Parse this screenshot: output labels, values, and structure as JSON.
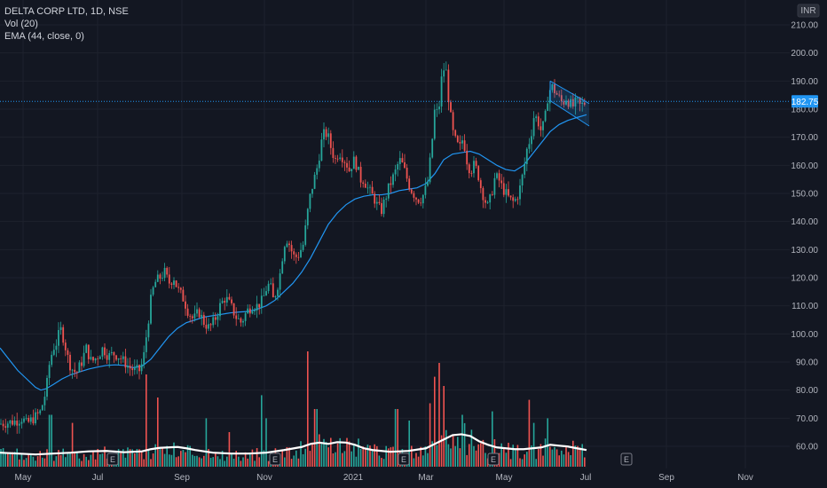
{
  "legend": {
    "symbol": "DELTA CORP LTD, 1D, NSE",
    "vol": "Vol (20)",
    "ema": "EMA (44, close, 0)"
  },
  "currency": "INR",
  "last_price_label": "182.75",
  "earnings_marker": "E",
  "colors": {
    "background": "#131722",
    "up": "#26a69a",
    "down": "#ef5350",
    "ema": "#2196f3",
    "vol_up": "#26a69a",
    "vol_down": "#ef5350",
    "vol_ma": "#ffffff",
    "axis_text": "#b2b5be",
    "price_tag": "#2196f3"
  },
  "chart_data": {
    "type": "candlestick",
    "x_ticks": [
      "May",
      "Jul",
      "Sep",
      "Nov",
      "2021",
      "Mar",
      "May",
      "Jul",
      "Sep",
      "Nov"
    ],
    "y_ticks": [
      "60.00",
      "70.00",
      "80.00",
      "90.00",
      "100.00",
      "110.00",
      "120.00",
      "130.00",
      "140.00",
      "150.00",
      "160.00",
      "170.00",
      "180.00",
      "190.00",
      "200.00",
      "210.00"
    ],
    "ylim": [
      55,
      213
    ],
    "price_path": [
      [
        0,
        68
      ],
      [
        10,
        68.5
      ],
      [
        18,
        69
      ],
      [
        25,
        70
      ],
      [
        30,
        68
      ],
      [
        38,
        70
      ],
      [
        45,
        72
      ],
      [
        48,
        75
      ],
      [
        52,
        80
      ],
      [
        56,
        90
      ],
      [
        60,
        95
      ],
      [
        64,
        97
      ],
      [
        68,
        102
      ],
      [
        72,
        98
      ],
      [
        76,
        92
      ],
      [
        80,
        88
      ],
      [
        86,
        86
      ],
      [
        92,
        90
      ],
      [
        97,
        95
      ],
      [
        103,
        90
      ],
      [
        110,
        92
      ],
      [
        116,
        95
      ],
      [
        122,
        92
      ],
      [
        128,
        93
      ],
      [
        134,
        92
      ],
      [
        140,
        90
      ],
      [
        146,
        88
      ],
      [
        152,
        87
      ],
      [
        158,
        87
      ],
      [
        162,
        92
      ],
      [
        166,
        102
      ],
      [
        170,
        112
      ],
      [
        174,
        118
      ],
      [
        180,
        120
      ],
      [
        186,
        122
      ],
      [
        190,
        118
      ],
      [
        196,
        120
      ],
      [
        200,
        116
      ],
      [
        206,
        113
      ],
      [
        212,
        108
      ],
      [
        218,
        105
      ],
      [
        224,
        108
      ],
      [
        230,
        104
      ],
      [
        236,
        102
      ],
      [
        242,
        105
      ],
      [
        248,
        110
      ],
      [
        254,
        113
      ],
      [
        260,
        110
      ],
      [
        266,
        106
      ],
      [
        272,
        104
      ],
      [
        278,
        108
      ],
      [
        284,
        110
      ],
      [
        290,
        110
      ],
      [
        296,
        112
      ],
      [
        300,
        116
      ],
      [
        304,
        118
      ],
      [
        308,
        112
      ],
      [
        312,
        116
      ],
      [
        316,
        122
      ],
      [
        320,
        132
      ],
      [
        324,
        134
      ],
      [
        328,
        130
      ],
      [
        332,
        127
      ],
      [
        336,
        128
      ],
      [
        342,
        132
      ],
      [
        346,
        142
      ],
      [
        350,
        150
      ],
      [
        354,
        155
      ],
      [
        358,
        160
      ],
      [
        362,
        168
      ],
      [
        366,
        172
      ],
      [
        370,
        170
      ],
      [
        374,
        165
      ],
      [
        378,
        162
      ],
      [
        382,
        165
      ],
      [
        386,
        163
      ],
      [
        390,
        161
      ],
      [
        394,
        158
      ],
      [
        398,
        162
      ],
      [
        402,
        160
      ],
      [
        406,
        155
      ],
      [
        410,
        155
      ],
      [
        414,
        152
      ],
      [
        418,
        150
      ],
      [
        422,
        148
      ],
      [
        426,
        145
      ],
      [
        430,
        144
      ],
      [
        434,
        148
      ],
      [
        438,
        152
      ],
      [
        442,
        155
      ],
      [
        446,
        158
      ],
      [
        450,
        162
      ],
      [
        454,
        160
      ],
      [
        458,
        156
      ],
      [
        462,
        152
      ],
      [
        466,
        150
      ],
      [
        470,
        148
      ],
      [
        474,
        148
      ],
      [
        478,
        150
      ],
      [
        482,
        154
      ],
      [
        486,
        165
      ],
      [
        490,
        180
      ],
      [
        494,
        178
      ],
      [
        498,
        192
      ],
      [
        502,
        196
      ],
      [
        506,
        182
      ],
      [
        510,
        172
      ],
      [
        514,
        168
      ],
      [
        518,
        166
      ],
      [
        522,
        170
      ],
      [
        526,
        162
      ],
      [
        530,
        158
      ],
      [
        534,
        160
      ],
      [
        538,
        158
      ],
      [
        542,
        152
      ],
      [
        546,
        148
      ],
      [
        550,
        145
      ],
      [
        554,
        150
      ],
      [
        558,
        156
      ],
      [
        562,
        155
      ],
      [
        566,
        152
      ],
      [
        570,
        150
      ],
      [
        574,
        148
      ],
      [
        578,
        147
      ],
      [
        582,
        148
      ],
      [
        586,
        152
      ],
      [
        590,
        158
      ],
      [
        594,
        166
      ],
      [
        598,
        170
      ],
      [
        602,
        178
      ],
      [
        606,
        176
      ],
      [
        610,
        172
      ],
      [
        614,
        176
      ],
      [
        618,
        186
      ],
      [
        622,
        188
      ],
      [
        626,
        186
      ],
      [
        630,
        184
      ],
      [
        634,
        182
      ],
      [
        638,
        184
      ],
      [
        642,
        182
      ],
      [
        646,
        181
      ],
      [
        650,
        183
      ],
      [
        654,
        181
      ],
      [
        658,
        182
      ],
      [
        661,
        182.75
      ]
    ],
    "ema_path": [
      [
        0,
        95
      ],
      [
        10,
        91
      ],
      [
        20,
        87
      ],
      [
        30,
        84
      ],
      [
        40,
        81
      ],
      [
        46,
        80
      ],
      [
        52,
        80.5
      ],
      [
        60,
        82
      ],
      [
        70,
        84
      ],
      [
        80,
        85.5
      ],
      [
        90,
        86.5
      ],
      [
        100,
        87.5
      ],
      [
        110,
        88.2
      ],
      [
        120,
        88.8
      ],
      [
        130,
        89
      ],
      [
        140,
        88.8
      ],
      [
        150,
        88
      ],
      [
        160,
        88.5
      ],
      [
        170,
        91
      ],
      [
        180,
        95
      ],
      [
        190,
        99
      ],
      [
        200,
        102
      ],
      [
        210,
        104
      ],
      [
        220,
        105
      ],
      [
        230,
        106
      ],
      [
        240,
        106.5
      ],
      [
        250,
        107
      ],
      [
        260,
        107.5
      ],
      [
        270,
        107.8
      ],
      [
        280,
        108
      ],
      [
        290,
        108.8
      ],
      [
        300,
        110
      ],
      [
        310,
        112
      ],
      [
        320,
        115
      ],
      [
        330,
        118
      ],
      [
        340,
        122
      ],
      [
        350,
        127
      ],
      [
        360,
        133
      ],
      [
        370,
        139
      ],
      [
        380,
        143
      ],
      [
        390,
        146
      ],
      [
        400,
        148
      ],
      [
        410,
        149
      ],
      [
        420,
        149.5
      ],
      [
        430,
        149.5
      ],
      [
        440,
        150
      ],
      [
        450,
        151
      ],
      [
        460,
        151.5
      ],
      [
        470,
        152
      ],
      [
        480,
        153.5
      ],
      [
        490,
        157
      ],
      [
        500,
        162
      ],
      [
        510,
        164
      ],
      [
        520,
        164.5
      ],
      [
        530,
        165
      ],
      [
        540,
        164
      ],
      [
        550,
        162
      ],
      [
        560,
        160
      ],
      [
        570,
        158.5
      ],
      [
        580,
        158
      ],
      [
        590,
        160
      ],
      [
        600,
        164
      ],
      [
        610,
        168
      ],
      [
        620,
        172
      ],
      [
        630,
        174.5
      ],
      [
        640,
        176
      ],
      [
        650,
        177
      ],
      [
        661,
        178
      ]
    ],
    "vol_ma_path": [
      [
        0,
        0.32
      ],
      [
        20,
        0.3
      ],
      [
        40,
        0.28
      ],
      [
        60,
        0.3
      ],
      [
        80,
        0.32
      ],
      [
        100,
        0.35
      ],
      [
        120,
        0.36
      ],
      [
        140,
        0.33
      ],
      [
        160,
        0.35
      ],
      [
        170,
        0.4
      ],
      [
        180,
        0.43
      ],
      [
        200,
        0.45
      ],
      [
        210,
        0.42
      ],
      [
        220,
        0.38
      ],
      [
        240,
        0.32
      ],
      [
        260,
        0.3
      ],
      [
        280,
        0.3
      ],
      [
        300,
        0.32
      ],
      [
        320,
        0.38
      ],
      [
        340,
        0.45
      ],
      [
        350,
        0.52
      ],
      [
        360,
        0.55
      ],
      [
        370,
        0.52
      ],
      [
        380,
        0.56
      ],
      [
        390,
        0.55
      ],
      [
        400,
        0.5
      ],
      [
        410,
        0.42
      ],
      [
        420,
        0.38
      ],
      [
        440,
        0.34
      ],
      [
        460,
        0.36
      ],
      [
        480,
        0.42
      ],
      [
        490,
        0.52
      ],
      [
        500,
        0.62
      ],
      [
        510,
        0.72
      ],
      [
        520,
        0.74
      ],
      [
        530,
        0.7
      ],
      [
        540,
        0.58
      ],
      [
        550,
        0.5
      ],
      [
        560,
        0.44
      ],
      [
        570,
        0.42
      ],
      [
        580,
        0.4
      ],
      [
        590,
        0.4
      ],
      [
        600,
        0.42
      ],
      [
        610,
        0.44
      ],
      [
        620,
        0.5
      ],
      [
        630,
        0.48
      ],
      [
        640,
        0.46
      ],
      [
        650,
        0.42
      ],
      [
        661,
        0.38
      ]
    ],
    "vol_spikes": [
      [
        57,
        0.45
      ],
      [
        82,
        0.38
      ],
      [
        165,
        0.8
      ],
      [
        178,
        0.6
      ],
      [
        233,
        0.42
      ],
      [
        258,
        0.3
      ],
      [
        294,
        0.62
      ],
      [
        300,
        0.42
      ],
      [
        346,
        1.0
      ],
      [
        356,
        0.5
      ],
      [
        447,
        0.5
      ],
      [
        461,
        0.4
      ],
      [
        484,
        0.55
      ],
      [
        490,
        0.78
      ],
      [
        496,
        0.9
      ],
      [
        501,
        0.7
      ],
      [
        520,
        0.45
      ],
      [
        556,
        0.48
      ],
      [
        596,
        0.58
      ],
      [
        602,
        0.38
      ],
      [
        617,
        0.42
      ]
    ],
    "earnings_at": [
      127,
      310,
      455,
      556,
      706
    ],
    "channel": {
      "upper": [
        [
          620,
          190
        ],
        [
          664,
          182
        ]
      ],
      "lower": [
        [
          620,
          183
        ],
        [
          664,
          174
        ]
      ]
    },
    "last_price": 182.75
  }
}
